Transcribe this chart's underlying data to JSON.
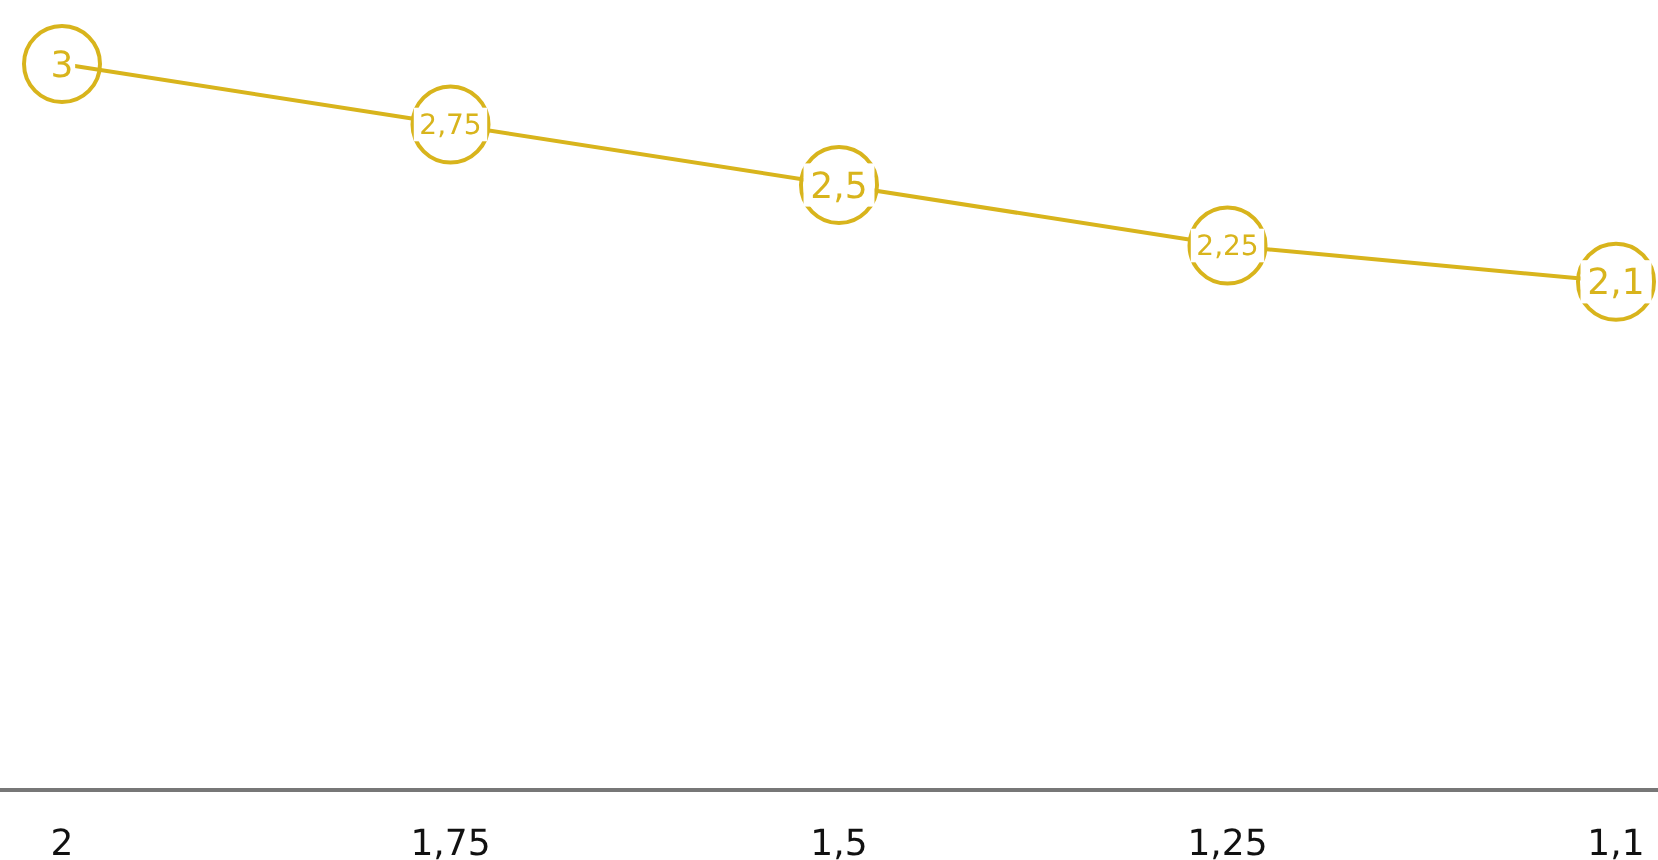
{
  "chart_data": {
    "type": "line",
    "categories": [
      "2",
      "1,75",
      "1,5",
      "1,25",
      "1,1"
    ],
    "series": [
      {
        "color": "#d8b41c",
        "values": [
          3,
          2.75,
          2.5,
          2.25,
          2.1
        ],
        "value_labels": [
          "3",
          "2,75",
          "2,5",
          "2,25",
          "2,1"
        ]
      }
    ],
    "marker": "circle"
  }
}
